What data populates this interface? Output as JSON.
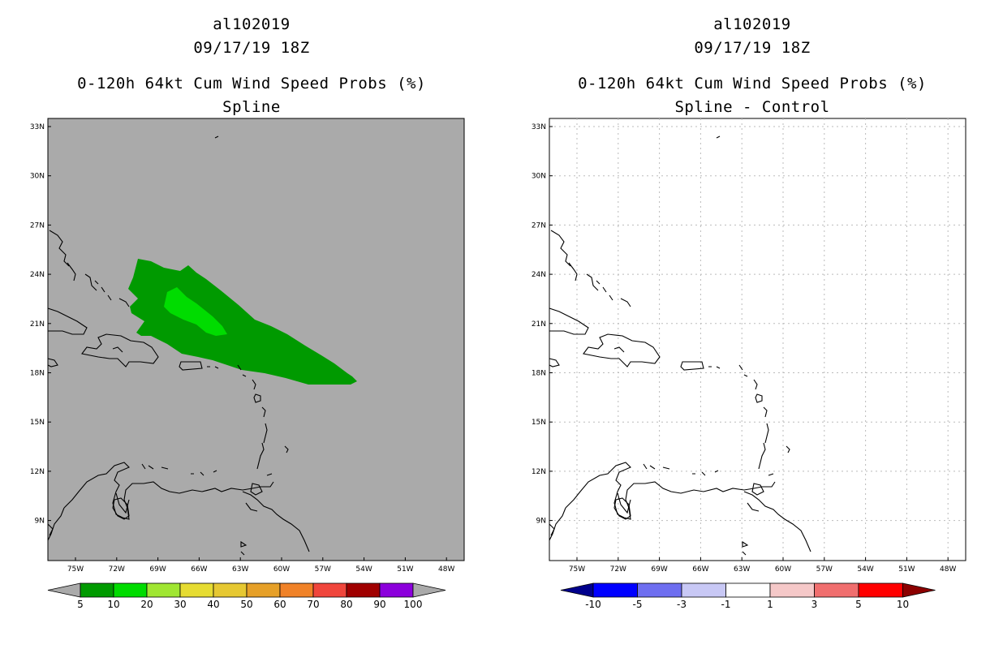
{
  "panels": [
    {
      "title_line1": "al102019",
      "title_line2": "09/17/19 18Z",
      "title_line3": "0-120h 64kt Cum Wind Speed Probs (%)",
      "title_line4": "Spline",
      "background_color": "#aaaaaa",
      "lat_labels": [
        "33N",
        "30N",
        "27N",
        "24N",
        "21N",
        "18N",
        "15N",
        "12N",
        "9N"
      ],
      "lon_labels": [
        "75W",
        "72W",
        "69W",
        "66W",
        "63W",
        "60W",
        "57W",
        "54W",
        "51W",
        "48W"
      ],
      "colorbar": {
        "colors": [
          "#009a00",
          "#00dc00",
          "#a0e632",
          "#e6dc32",
          "#e6c832",
          "#e6a028",
          "#f08228",
          "#f0463c",
          "#a00000",
          "#8c00dc"
        ],
        "end_low_color": "#aaaaaa",
        "end_high_color": "#aaaaaa",
        "labels": [
          "5",
          "10",
          "20",
          "30",
          "40",
          "50",
          "60",
          "70",
          "80",
          "90",
          "100"
        ]
      },
      "contours": [
        {
          "level_label": "5",
          "color": "#009a00"
        },
        {
          "level_label": "10",
          "color": "#00dc00"
        }
      ]
    },
    {
      "title_line1": "al102019",
      "title_line2": "09/17/19 18Z",
      "title_line3": "0-120h 64kt Cum Wind Speed Probs (%)",
      "title_line4": "Spline - Control",
      "background_color": "#ffffff",
      "grid": true,
      "lat_labels": [
        "33N",
        "30N",
        "27N",
        "24N",
        "21N",
        "18N",
        "15N",
        "12N",
        "9N"
      ],
      "lon_labels": [
        "75W",
        "72W",
        "69W",
        "66W",
        "63W",
        "60W",
        "57W",
        "54W",
        "51W",
        "48W"
      ],
      "colorbar": {
        "colors": [
          "#0000ff",
          "#6e6ef0",
          "#c8c8f5",
          "#ffffff",
          "#f5c8c8",
          "#f06e6e",
          "#ff0000"
        ],
        "end_low_color": "#00008c",
        "end_high_color": "#8c0000",
        "labels": [
          "-10",
          "-5",
          "-3",
          "-1",
          "1",
          "3",
          "5",
          "10"
        ]
      }
    }
  ]
}
